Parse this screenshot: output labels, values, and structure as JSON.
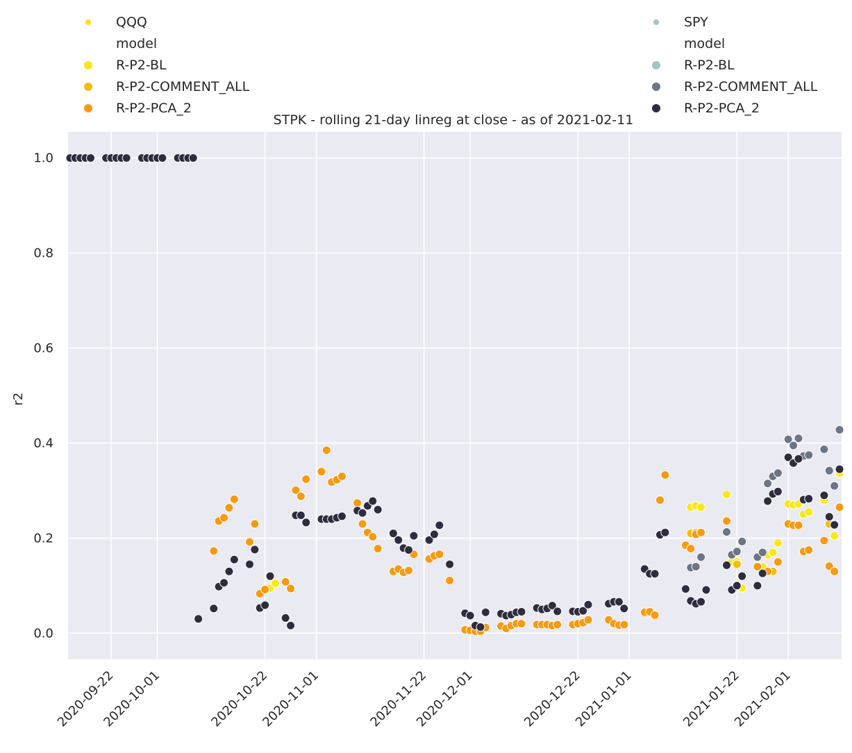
{
  "chart_data": {
    "type": "scatter",
    "title": "STPK - rolling 21-day linreg at close - as of 2021-02-11",
    "xlabel": "",
    "ylabel": "r2",
    "xlim": [
      "2020-09-14",
      "2021-02-11"
    ],
    "ylim": [
      -0.055,
      1.055
    ],
    "grid": true,
    "background": "#eaeaf2",
    "x_ticks": [
      "2020-09-22",
      "2020-10-01",
      "2020-10-22",
      "2020-11-01",
      "2020-11-22",
      "2020-12-01",
      "2020-12-22",
      "2021-01-01",
      "2021-01-22",
      "2021-02-01"
    ],
    "y_ticks": [
      "0.0",
      "0.2",
      "0.4",
      "0.6",
      "0.8",
      "1.0"
    ],
    "legend": {
      "left": {
        "placement": "top-left",
        "entries": [
          {
            "label": "QQQ",
            "color": "#f5e024",
            "kind": "small"
          },
          {
            "label": "model",
            "color": null,
            "kind": "header"
          },
          {
            "label": "R-P2-BL",
            "color": "#f7e81d",
            "kind": "marker"
          },
          {
            "label": "R-P2-COMMENT_ALL",
            "color": "#f5bc0c",
            "kind": "marker"
          },
          {
            "label": "R-P2-PCA_2",
            "color": "#f59a12",
            "kind": "marker"
          }
        ]
      },
      "right": {
        "placement": "top-right",
        "entries": [
          {
            "label": "SPY",
            "color": "#a3c4c4",
            "kind": "small"
          },
          {
            "label": "model",
            "color": null,
            "kind": "header"
          },
          {
            "label": "R-P2-BL",
            "color": "#a3c4c4",
            "kind": "marker"
          },
          {
            "label": "R-P2-COMMENT_ALL",
            "color": "#6c7585",
            "kind": "marker"
          },
          {
            "label": "R-P2-PCA_2",
            "color": "#2e2c3e",
            "kind": "marker"
          }
        ]
      }
    },
    "series": [
      {
        "name": "R-P2-BL",
        "color": "#f7e81d",
        "points": [
          [
            "2020-10-19",
            0.192
          ],
          [
            "2020-10-20",
            0.23
          ],
          [
            "2020-10-23",
            0.095
          ],
          [
            "2020-10-24",
            0.105
          ],
          [
            "2021-01-13",
            0.265
          ],
          [
            "2021-01-14",
            0.268
          ],
          [
            "2021-01-15",
            0.265
          ],
          [
            "2021-01-20",
            0.292
          ],
          [
            "2021-01-21",
            0.15
          ],
          [
            "2021-01-22",
            0.15
          ],
          [
            "2021-01-23",
            0.095
          ],
          [
            "2021-01-26",
            0.14
          ],
          [
            "2021-01-27",
            0.14
          ],
          [
            "2021-01-28",
            0.165
          ],
          [
            "2021-01-29",
            0.17
          ],
          [
            "2021-01-30",
            0.19
          ],
          [
            "2021-02-01",
            0.272
          ],
          [
            "2021-02-02",
            0.27
          ],
          [
            "2021-02-03",
            0.272
          ],
          [
            "2021-02-04",
            0.25
          ],
          [
            "2021-02-05",
            0.255
          ],
          [
            "2021-02-08",
            0.28
          ],
          [
            "2021-02-09",
            0.23
          ],
          [
            "2021-02-10",
            0.205
          ],
          [
            "2021-02-11",
            0.337
          ]
        ]
      },
      {
        "name": "R-P2-COMMENT_ALL",
        "color": "#f5bc0c",
        "points": [
          [
            "2021-01-12",
            0.185
          ],
          [
            "2021-01-13",
            0.21
          ],
          [
            "2021-01-14",
            0.212
          ],
          [
            "2021-01-15",
            0.212
          ],
          [
            "2021-01-22",
            0.145
          ],
          [
            "2021-01-28",
            0.13
          ],
          [
            "2021-01-29",
            0.13
          ],
          [
            "2021-02-09",
            0.23
          ]
        ]
      },
      {
        "name": "R-P2-PCA_2",
        "color": "#f59a12",
        "points": [
          [
            "2020-10-12",
            0.173
          ],
          [
            "2020-10-13",
            0.236
          ],
          [
            "2020-10-14",
            0.243
          ],
          [
            "2020-10-15",
            0.264
          ],
          [
            "2020-10-16",
            0.282
          ],
          [
            "2020-10-19",
            0.192
          ],
          [
            "2020-10-20",
            0.23
          ],
          [
            "2020-10-21",
            0.083
          ],
          [
            "2020-10-22",
            0.092
          ],
          [
            "2020-10-26",
            0.108
          ],
          [
            "2020-10-27",
            0.094
          ],
          [
            "2020-10-28",
            0.301
          ],
          [
            "2020-10-29",
            0.288
          ],
          [
            "2020-10-30",
            0.324
          ],
          [
            "2020-11-02",
            0.34
          ],
          [
            "2020-11-03",
            0.385
          ],
          [
            "2020-11-04",
            0.318
          ],
          [
            "2020-11-05",
            0.323
          ],
          [
            "2020-11-06",
            0.33
          ],
          [
            "2020-11-09",
            0.274
          ],
          [
            "2020-11-10",
            0.23
          ],
          [
            "2020-11-11",
            0.212
          ],
          [
            "2020-11-12",
            0.203
          ],
          [
            "2020-11-13",
            0.178
          ],
          [
            "2020-11-16",
            0.13
          ],
          [
            "2020-11-17",
            0.135
          ],
          [
            "2020-11-18",
            0.128
          ],
          [
            "2020-11-19",
            0.132
          ],
          [
            "2020-11-20",
            0.166
          ],
          [
            "2020-11-23",
            0.156
          ],
          [
            "2020-11-24",
            0.163
          ],
          [
            "2020-11-25",
            0.166
          ],
          [
            "2020-11-27",
            0.111
          ],
          [
            "2020-11-30",
            0.007
          ],
          [
            "2020-12-01",
            0.006
          ],
          [
            "2020-12-02",
            0.004
          ],
          [
            "2020-12-03",
            0.004
          ],
          [
            "2020-12-04",
            0.012
          ],
          [
            "2020-12-07",
            0.015
          ],
          [
            "2020-12-08",
            0.01
          ],
          [
            "2020-12-09",
            0.016
          ],
          [
            "2020-12-10",
            0.02
          ],
          [
            "2020-12-11",
            0.02
          ],
          [
            "2020-12-14",
            0.018
          ],
          [
            "2020-12-15",
            0.018
          ],
          [
            "2020-12-16",
            0.018
          ],
          [
            "2020-12-17",
            0.016
          ],
          [
            "2020-12-18",
            0.018
          ],
          [
            "2020-12-21",
            0.018
          ],
          [
            "2020-12-22",
            0.02
          ],
          [
            "2020-12-23",
            0.022
          ],
          [
            "2020-12-24",
            0.028
          ],
          [
            "2020-12-28",
            0.028
          ],
          [
            "2020-12-29",
            0.02
          ],
          [
            "2020-12-30",
            0.017
          ],
          [
            "2020-12-31",
            0.018
          ],
          [
            "2021-01-04",
            0.044
          ],
          [
            "2021-01-05",
            0.045
          ],
          [
            "2021-01-06",
            0.038
          ],
          [
            "2021-01-07",
            0.28
          ],
          [
            "2021-01-08",
            0.333
          ],
          [
            "2021-01-12",
            0.185
          ],
          [
            "2021-01-13",
            0.178
          ],
          [
            "2021-01-14",
            0.208
          ],
          [
            "2021-01-15",
            0.212
          ],
          [
            "2021-01-20",
            0.236
          ],
          [
            "2021-01-22",
            0.1
          ],
          [
            "2021-01-26",
            0.14
          ],
          [
            "2021-01-28",
            0.13
          ],
          [
            "2021-01-30",
            0.15
          ],
          [
            "2021-02-01",
            0.23
          ],
          [
            "2021-02-02",
            0.227
          ],
          [
            "2021-02-03",
            0.227
          ],
          [
            "2021-02-04",
            0.172
          ],
          [
            "2021-02-05",
            0.175
          ],
          [
            "2021-02-08",
            0.195
          ],
          [
            "2021-02-09",
            0.141
          ],
          [
            "2021-02-10",
            0.13
          ],
          [
            "2021-02-11",
            0.265
          ]
        ]
      },
      {
        "name": "R-P2-COMMENT_ALL (SPY)",
        "color": "#6c7585",
        "points": [
          [
            "2021-01-13",
            0.138
          ],
          [
            "2021-01-14",
            0.14
          ],
          [
            "2021-01-15",
            0.16
          ],
          [
            "2021-01-20",
            0.213
          ],
          [
            "2021-01-21",
            0.165
          ],
          [
            "2021-01-22",
            0.172
          ],
          [
            "2021-01-23",
            0.193
          ],
          [
            "2021-01-26",
            0.16
          ],
          [
            "2021-01-27",
            0.17
          ],
          [
            "2021-01-28",
            0.315
          ],
          [
            "2021-01-29",
            0.33
          ],
          [
            "2021-01-30",
            0.337
          ],
          [
            "2021-02-01",
            0.408
          ],
          [
            "2021-02-02",
            0.395
          ],
          [
            "2021-02-03",
            0.41
          ],
          [
            "2021-02-04",
            0.373
          ],
          [
            "2021-02-05",
            0.375
          ],
          [
            "2021-02-08",
            0.387
          ],
          [
            "2021-02-09",
            0.342
          ],
          [
            "2021-02-10",
            0.31
          ],
          [
            "2021-02-11",
            0.428
          ]
        ]
      },
      {
        "name": "R-P2-PCA_2 (SPY)",
        "color": "#2e2c3e",
        "points": [
          [
            "2020-09-14",
            1.0
          ],
          [
            "2020-09-15",
            1.0
          ],
          [
            "2020-09-16",
            1.0
          ],
          [
            "2020-09-17",
            1.0
          ],
          [
            "2020-09-18",
            1.0
          ],
          [
            "2020-09-21",
            1.0
          ],
          [
            "2020-09-22",
            1.0
          ],
          [
            "2020-09-23",
            1.0
          ],
          [
            "2020-09-24",
            1.0
          ],
          [
            "2020-09-25",
            1.0
          ],
          [
            "2020-09-28",
            1.0
          ],
          [
            "2020-09-29",
            1.0
          ],
          [
            "2020-09-30",
            1.0
          ],
          [
            "2020-10-01",
            1.0
          ],
          [
            "2020-10-02",
            1.0
          ],
          [
            "2020-10-05",
            1.0
          ],
          [
            "2020-10-06",
            1.0
          ],
          [
            "2020-10-07",
            1.0
          ],
          [
            "2020-10-08",
            1.0
          ],
          [
            "2020-10-09",
            0.03
          ],
          [
            "2020-10-12",
            0.052
          ],
          [
            "2020-10-13",
            0.098
          ],
          [
            "2020-10-14",
            0.106
          ],
          [
            "2020-10-15",
            0.13
          ],
          [
            "2020-10-16",
            0.155
          ],
          [
            "2020-10-19",
            0.145
          ],
          [
            "2020-10-20",
            0.176
          ],
          [
            "2020-10-21",
            0.053
          ],
          [
            "2020-10-22",
            0.059
          ],
          [
            "2020-10-23",
            0.12
          ],
          [
            "2020-10-26",
            0.032
          ],
          [
            "2020-10-27",
            0.016
          ],
          [
            "2020-10-28",
            0.248
          ],
          [
            "2020-10-29",
            0.248
          ],
          [
            "2020-10-30",
            0.233
          ],
          [
            "2020-11-02",
            0.24
          ],
          [
            "2020-11-03",
            0.24
          ],
          [
            "2020-11-04",
            0.24
          ],
          [
            "2020-11-05",
            0.243
          ],
          [
            "2020-11-06",
            0.246
          ],
          [
            "2020-11-09",
            0.258
          ],
          [
            "2020-11-10",
            0.253
          ],
          [
            "2020-11-11",
            0.268
          ],
          [
            "2020-11-12",
            0.278
          ],
          [
            "2020-11-13",
            0.26
          ],
          [
            "2020-11-16",
            0.21
          ],
          [
            "2020-11-17",
            0.196
          ],
          [
            "2020-11-18",
            0.179
          ],
          [
            "2020-11-19",
            0.175
          ],
          [
            "2020-11-20",
            0.205
          ],
          [
            "2020-11-23",
            0.196
          ],
          [
            "2020-11-24",
            0.208
          ],
          [
            "2020-11-25",
            0.227
          ],
          [
            "2020-11-27",
            0.145
          ],
          [
            "2020-11-30",
            0.042
          ],
          [
            "2020-12-01",
            0.037
          ],
          [
            "2020-12-02",
            0.016
          ],
          [
            "2020-12-03",
            0.013
          ],
          [
            "2020-12-04",
            0.044
          ],
          [
            "2020-12-07",
            0.041
          ],
          [
            "2020-12-08",
            0.037
          ],
          [
            "2020-12-09",
            0.039
          ],
          [
            "2020-12-10",
            0.044
          ],
          [
            "2020-12-11",
            0.045
          ],
          [
            "2020-12-14",
            0.053
          ],
          [
            "2020-12-15",
            0.05
          ],
          [
            "2020-12-16",
            0.052
          ],
          [
            "2020-12-17",
            0.058
          ],
          [
            "2020-12-18",
            0.046
          ],
          [
            "2020-12-21",
            0.046
          ],
          [
            "2020-12-22",
            0.045
          ],
          [
            "2020-12-23",
            0.047
          ],
          [
            "2020-12-24",
            0.06
          ],
          [
            "2020-12-28",
            0.062
          ],
          [
            "2020-12-29",
            0.066
          ],
          [
            "2020-12-30",
            0.066
          ],
          [
            "2020-12-31",
            0.052
          ],
          [
            "2021-01-04",
            0.135
          ],
          [
            "2021-01-05",
            0.125
          ],
          [
            "2021-01-06",
            0.125
          ],
          [
            "2021-01-07",
            0.207
          ],
          [
            "2021-01-08",
            0.212
          ],
          [
            "2021-01-12",
            0.093
          ],
          [
            "2021-01-13",
            0.068
          ],
          [
            "2021-01-14",
            0.062
          ],
          [
            "2021-01-15",
            0.066
          ],
          [
            "2021-01-16",
            0.091
          ],
          [
            "2021-01-20",
            0.143
          ],
          [
            "2021-01-21",
            0.091
          ],
          [
            "2021-01-22",
            0.1
          ],
          [
            "2021-01-23",
            0.12
          ],
          [
            "2021-01-26",
            0.1
          ],
          [
            "2021-01-27",
            0.126
          ],
          [
            "2021-01-28",
            0.278
          ],
          [
            "2021-01-29",
            0.293
          ],
          [
            "2021-01-30",
            0.298
          ],
          [
            "2021-02-01",
            0.37
          ],
          [
            "2021-02-02",
            0.358
          ],
          [
            "2021-02-03",
            0.367
          ],
          [
            "2021-02-04",
            0.281
          ],
          [
            "2021-02-05",
            0.283
          ],
          [
            "2021-02-08",
            0.29
          ],
          [
            "2021-02-09",
            0.245
          ],
          [
            "2021-02-10",
            0.228
          ],
          [
            "2021-02-11",
            0.345
          ]
        ]
      }
    ]
  }
}
